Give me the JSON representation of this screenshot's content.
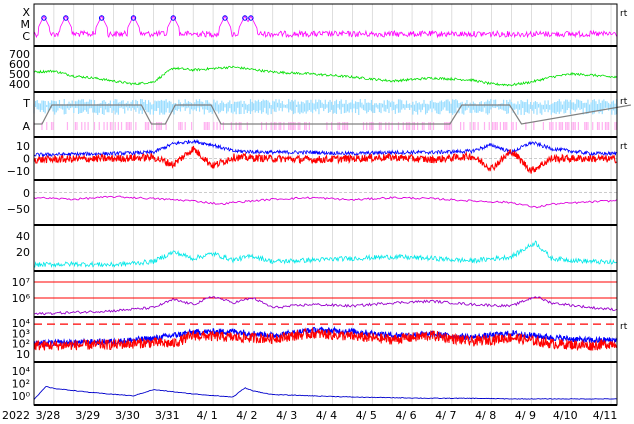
{
  "chart_data": {
    "type": "line",
    "year_label": "2022",
    "dates": [
      "3/28",
      "3/29",
      "3/30",
      "3/31",
      "4/ 1",
      "4/ 2",
      "4/ 3",
      "4/ 4",
      "4/ 5",
      "4/ 6",
      "4/ 7",
      "4/ 8",
      "4/ 9",
      "4/10",
      "4/11"
    ],
    "right_marker": "rt",
    "colors": {
      "magenta": "#ff00ff",
      "green": "#00e000",
      "light_blue": "#99ddff",
      "pink": "#ffb0f0",
      "gray": "#808080",
      "blue": "#0000ff",
      "red": "#ff0000",
      "magenta_dark": "#dd00dd",
      "cyan": "#00e8e8",
      "purple": "#9900cc",
      "navy": "#0000cc"
    },
    "panels": [
      {
        "id": "xray-class",
        "tick_labels": [
          "X",
          "M",
          "C"
        ],
        "right_marker": true,
        "flare_markers_day": [
          0.25,
          0.8,
          1.7,
          2.5,
          3.5,
          4.8,
          5.3,
          5.45
        ],
        "series": [
          {
            "color": "magenta",
            "baseline": "C",
            "noise": 0.4
          }
        ]
      },
      {
        "id": "solar-wind-speed",
        "tick_labels": [
          "700",
          "600",
          "500",
          "400"
        ],
        "ylim": [
          350,
          750
        ],
        "series": [
          {
            "color": "green",
            "x_day": [
              0,
              0.5,
              1,
              1.5,
              2,
              2.5,
              3,
              3.5,
              4,
              5,
              6,
              7,
              8,
              9,
              10,
              11,
              11.5,
              12,
              12.5,
              13,
              13.5,
              14,
              14.5,
              15
            ],
            "y": [
              520,
              530,
              480,
              460,
              430,
              400,
              420,
              560,
              540,
              570,
              520,
              500,
              470,
              430,
              460,
              440,
              400,
              390,
              420,
              470,
              500,
              490,
              470,
              460
            ]
          }
        ]
      },
      {
        "id": "imf-sector",
        "tick_labels": [
          "T",
          "A"
        ],
        "right_marker": true,
        "sector_x_day": [
          0,
          0.2,
          0.45,
          0.7,
          2.7,
          2.95,
          3.3,
          3.55,
          4.45,
          4.7,
          10.45,
          10.75,
          11.95,
          12.25,
          15
        ],
        "sector_level": [
          "A",
          "A",
          "T",
          "T",
          "T",
          "A",
          "A",
          "T",
          "T",
          "A",
          "A",
          "T",
          "T",
          "A",
          "T"
        ]
      },
      {
        "id": "imf-components",
        "tick_labels": [
          "10",
          "0",
          "−10"
        ],
        "ylim": [
          -15,
          15
        ],
        "right_marker": true,
        "series": [
          {
            "name_code": "bt",
            "color": "blue",
            "x_day": [
              0,
              2,
              3,
              3.5,
              4,
              4.5,
              5,
              6,
              7,
              8,
              9,
              10,
              11,
              11.5,
              12,
              12.5,
              13,
              14,
              15
            ],
            "y": [
              3,
              4,
              5,
              12,
              14,
              11,
              6,
              5,
              5,
              4,
              5,
              5,
              6,
              11,
              5,
              13,
              8,
              4,
              4
            ]
          },
          {
            "name_code": "bz",
            "color": "red",
            "x_day": [
              0,
              2,
              3,
              3.5,
              4,
              4.5,
              5,
              6,
              7,
              8,
              9,
              10,
              11,
              11.5,
              12,
              12.5,
              13,
              14,
              15
            ],
            "y": [
              -1,
              0,
              1,
              -5,
              8,
              -6,
              1,
              0,
              -1,
              0,
              1,
              -1,
              2,
              -8,
              6,
              -10,
              0,
              0,
              -1
            ]
          }
        ]
      },
      {
        "id": "dst",
        "tick_labels": [
          "0",
          "−50"
        ],
        "ylim": [
          -90,
          30
        ],
        "series": [
          {
            "color": "magenta_dark",
            "x_day": [
              0,
              1,
              2,
              3,
              4,
              4.7,
              5,
              6,
              7,
              8,
              9,
              10,
              11,
              12,
              12.6,
              13,
              14,
              15
            ],
            "y": [
              -15,
              -20,
              -12,
              -18,
              -25,
              -35,
              -30,
              -20,
              -15,
              -22,
              -15,
              -18,
              -25,
              -30,
              -45,
              -35,
              -28,
              -22
            ]
          }
        ]
      },
      {
        "id": "density",
        "tick_labels": [
          "40",
          "20"
        ],
        "ylim": [
          0,
          50
        ],
        "series": [
          {
            "color": "cyan",
            "x_day": [
              0,
              1,
              2,
              3,
              3.5,
              4,
              4.5,
              5,
              5.5,
              6,
              7,
              8,
              9,
              10,
              11,
              12,
              12.6,
              13,
              14,
              15
            ],
            "y": [
              4,
              5,
              4,
              8,
              20,
              12,
              18,
              10,
              15,
              8,
              10,
              12,
              14,
              12,
              9,
              14,
              32,
              12,
              8,
              6
            ]
          }
        ]
      },
      {
        "id": "electron-flux",
        "tick_labels": [
          "10⁷",
          "10⁶"
        ],
        "ylim_log": [
          5.0,
          7.5
        ],
        "threshold_log": [
          7.0,
          6.0
        ],
        "series": [
          {
            "color": "purple",
            "x_day": [
              0,
              2,
              3,
              3.5,
              4,
              4.5,
              5,
              5.5,
              6,
              7,
              8,
              9,
              10,
              11,
              12,
              12.6,
              13,
              14,
              15
            ],
            "y": [
              5.0,
              5.2,
              5.4,
              5.9,
              5.6,
              6.1,
              5.7,
              6.0,
              5.4,
              5.6,
              5.5,
              5.7,
              5.8,
              5.6,
              5.5,
              6.1,
              5.7,
              5.4,
              5.2
            ]
          }
        ]
      },
      {
        "id": "proton-flux",
        "tick_labels": [
          "10⁴",
          "10³",
          "10²",
          "10"
        ],
        "ylim_log": [
          0.5,
          4.3
        ],
        "threshold_log": 3.9,
        "right_marker": true,
        "series": [
          {
            "color": "blue",
            "x_day": [
              0,
              2,
              3,
              3.5,
              4,
              5,
              6,
              7,
              8,
              9,
              10,
              11,
              12,
              13,
              14,
              15
            ],
            "y": [
              2.0,
              2.2,
              2.5,
              2.8,
              3.1,
              3.2,
              2.8,
              3.3,
              3.2,
              2.8,
              2.9,
              2.6,
              3.0,
              2.6,
              2.3,
              2.4
            ]
          },
          {
            "color": "red",
            "x_day": [
              0,
              2,
              3,
              3.5,
              4,
              5,
              6,
              7,
              8,
              9,
              10,
              11,
              12,
              13,
              14,
              15
            ],
            "y": [
              1.8,
              1.9,
              2.1,
              2.0,
              2.8,
              2.6,
              2.5,
              3.0,
              2.7,
              2.4,
              2.8,
              2.2,
              2.6,
              2.0,
              1.8,
              2.2
            ]
          }
        ]
      },
      {
        "id": "high-energy-protons",
        "tick_labels": [
          "10⁴",
          "10²",
          "10⁰"
        ],
        "ylim_log": [
          -1,
          5
        ],
        "series": [
          {
            "color": "navy",
            "x_day": [
              0,
              0.3,
              0.5,
              1.5,
              2.5,
              3.0,
              3.3,
              4.0,
              5.0,
              5.3,
              5.5,
              6,
              7,
              8,
              9,
              10,
              11,
              12,
              13,
              14,
              15
            ],
            "y": [
              -0.6,
              1.5,
              1.2,
              0.5,
              0.0,
              1.0,
              0.8,
              0.3,
              -0.2,
              1.3,
              0.8,
              0.2,
              0.0,
              -0.2,
              -0.3,
              -0.4,
              -0.4,
              -0.5,
              -0.5,
              -0.5,
              -0.5
            ]
          }
        ]
      }
    ]
  }
}
